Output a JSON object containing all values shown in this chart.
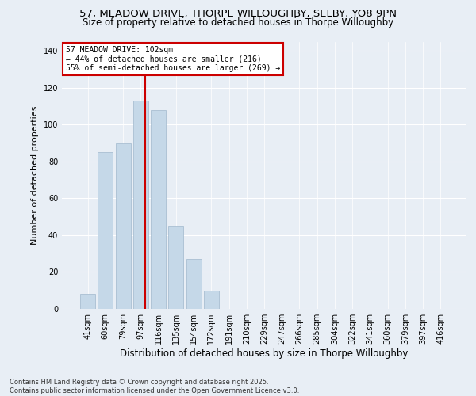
{
  "title_line1": "57, MEADOW DRIVE, THORPE WILLOUGHBY, SELBY, YO8 9PN",
  "title_line2": "Size of property relative to detached houses in Thorpe Willoughby",
  "xlabel": "Distribution of detached houses by size in Thorpe Willoughby",
  "ylabel": "Number of detached properties",
  "categories": [
    "41sqm",
    "60sqm",
    "79sqm",
    "97sqm",
    "116sqm",
    "135sqm",
    "154sqm",
    "172sqm",
    "191sqm",
    "210sqm",
    "229sqm",
    "247sqm",
    "266sqm",
    "285sqm",
    "304sqm",
    "322sqm",
    "341sqm",
    "360sqm",
    "379sqm",
    "397sqm",
    "416sqm"
  ],
  "values": [
    8,
    85,
    90,
    113,
    108,
    45,
    27,
    10,
    0,
    0,
    0,
    0,
    0,
    0,
    0,
    0,
    0,
    0,
    0,
    0,
    0
  ],
  "bar_color": "#c5d8e8",
  "bar_edge_color": "#a0b8cc",
  "vline_x_index": 3.26,
  "annotation_text1": "57 MEADOW DRIVE: 102sqm",
  "annotation_text2": "← 44% of detached houses are smaller (216)",
  "annotation_text3": "55% of semi-detached houses are larger (269) →",
  "vline_color": "#cc0000",
  "annotation_box_edge_color": "#cc0000",
  "background_color": "#e8eef5",
  "plot_bg_color": "#e8eef5",
  "footer_text": "Contains HM Land Registry data © Crown copyright and database right 2025.\nContains public sector information licensed under the Open Government Licence v3.0.",
  "ylim": [
    0,
    145
  ],
  "yticks": [
    0,
    20,
    40,
    60,
    80,
    100,
    120,
    140
  ],
  "grid_color": "#ffffff",
  "title_fontsize": 9.5,
  "subtitle_fontsize": 8.5,
  "ylabel_fontsize": 8,
  "xlabel_fontsize": 8.5,
  "tick_fontsize": 7,
  "annotation_fontsize": 7,
  "footer_fontsize": 6
}
